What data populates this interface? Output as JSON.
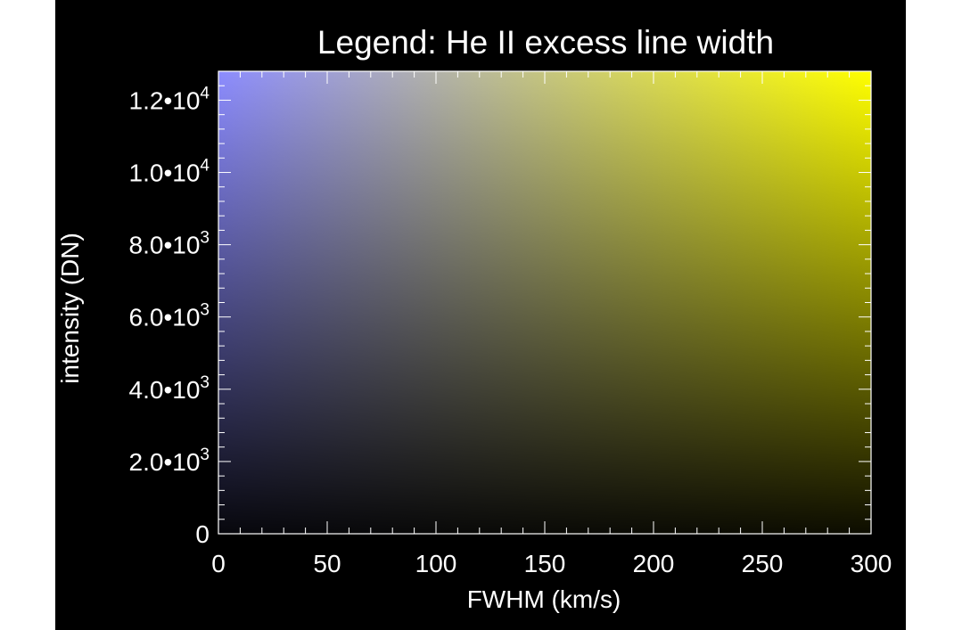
{
  "chart_data": {
    "type": "heatmap",
    "title": "Legend: He II excess line width",
    "xlabel": "FWHM (km/s)",
    "ylabel": "intensity (DN)",
    "xlim": [
      0,
      300
    ],
    "ylim": [
      0,
      12800
    ],
    "x_ticks": [
      {
        "value": 0,
        "label": "0"
      },
      {
        "value": 50,
        "label": "50"
      },
      {
        "value": 100,
        "label": "100"
      },
      {
        "value": 150,
        "label": "150"
      },
      {
        "value": 200,
        "label": "200"
      },
      {
        "value": 250,
        "label": "250"
      },
      {
        "value": 300,
        "label": "300"
      }
    ],
    "y_ticks": [
      {
        "value": 0,
        "mantissa": "0",
        "exponent": ""
      },
      {
        "value": 2000,
        "mantissa": "2.0•10",
        "exponent": "3"
      },
      {
        "value": 4000,
        "mantissa": "4.0•10",
        "exponent": "3"
      },
      {
        "value": 6000,
        "mantissa": "6.0•10",
        "exponent": "3"
      },
      {
        "value": 8000,
        "mantissa": "8.0•10",
        "exponent": "3"
      },
      {
        "value": 10000,
        "mantissa": "1.0•10",
        "exponent": "4"
      },
      {
        "value": 12000,
        "mantissa": "1.2•10",
        "exponent": "4"
      }
    ],
    "x_minor_step": 10,
    "y_minor_step": 400,
    "colors": {
      "low_width_high_intensity": "#8c8cff",
      "high_width_high_intensity": "#ffff00",
      "low_intensity": "#000000",
      "background": "#000000",
      "axis": "#ffffff"
    },
    "grid": false
  }
}
